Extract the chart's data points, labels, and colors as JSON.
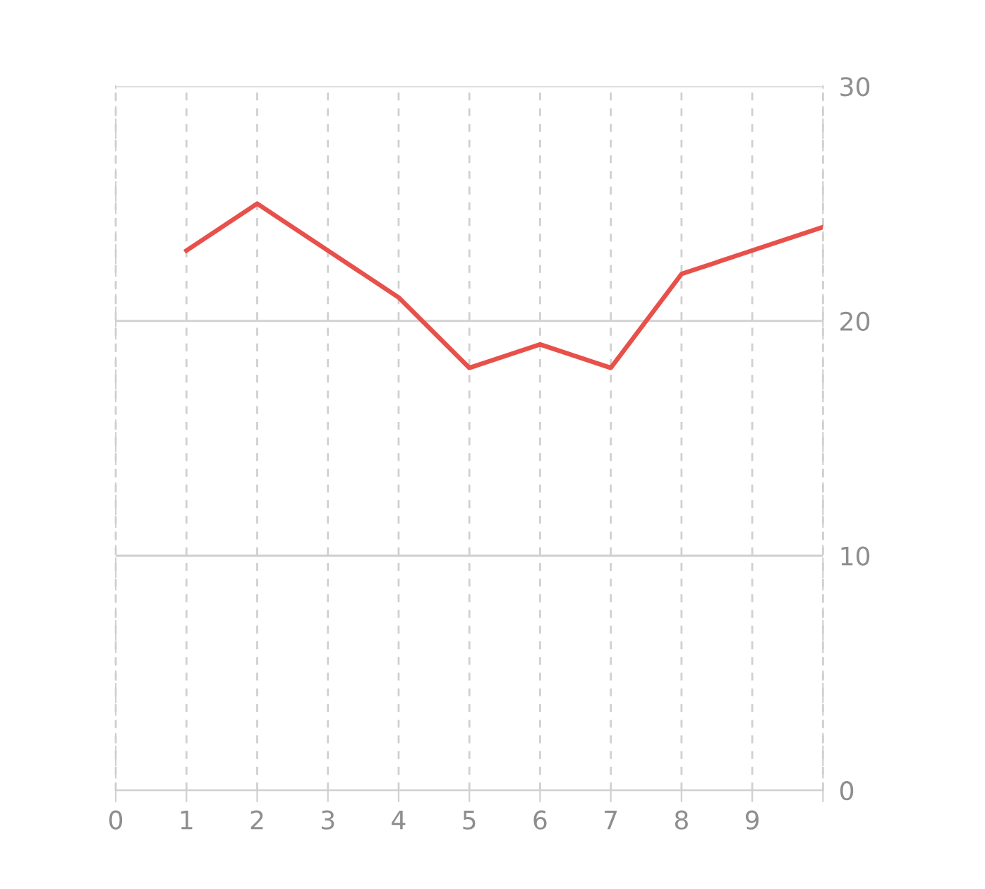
{
  "chart_data": {
    "type": "line",
    "x": [
      1,
      2,
      3,
      4,
      5,
      6,
      7,
      8,
      9,
      10
    ],
    "series": [
      {
        "color": "#e8504a",
        "values": [
          23,
          25,
          23,
          21,
          18,
          19,
          18,
          22,
          23,
          24
        ]
      }
    ],
    "xlim": [
      0,
      10
    ],
    "xticks": [
      0,
      1,
      2,
      3,
      4,
      5,
      6,
      7,
      8,
      9,
      {
        "value": 10,
        "label": null
      }
    ],
    "ylim": [
      0,
      30
    ],
    "yticks": [
      0,
      10,
      20,
      30
    ],
    "grid": true,
    "marker": "none",
    "line_style": "solid"
  }
}
